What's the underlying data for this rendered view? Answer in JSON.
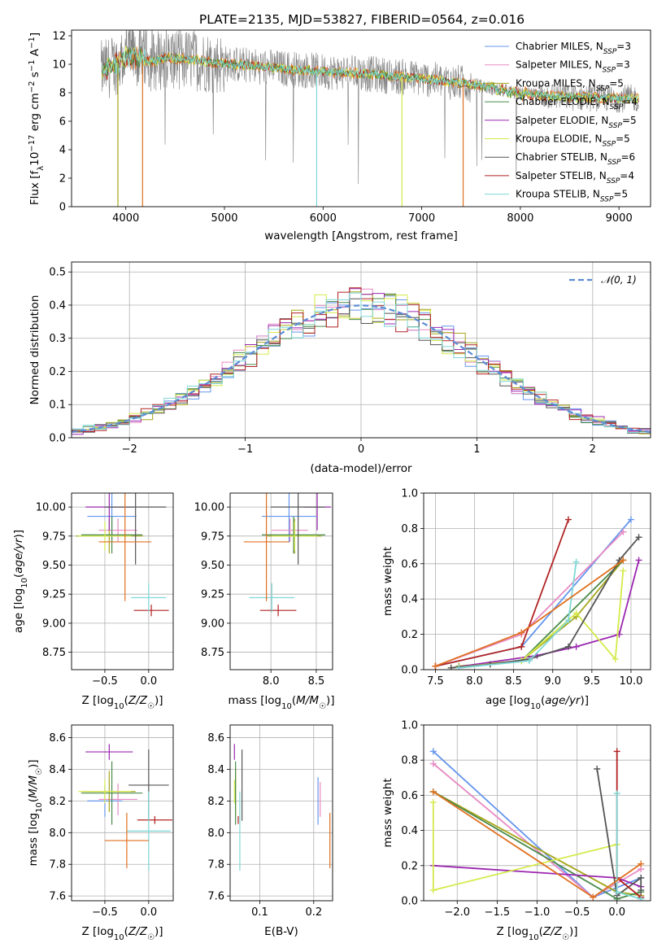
{
  "figure": {
    "title": "PLATE=2135, MJD=53827, FIBERID=0564, z=0.016"
  },
  "colors": [
    "#6495ed",
    "#e78ac3",
    "#a6a61a",
    "#4a8a4a",
    "#9b27b0",
    "#d4ea4a",
    "#555555",
    "#b22222",
    "#7fd7d7",
    "#e07020"
  ],
  "legend_models": [
    {
      "name": "Chabrier MILES, N_SSP=3",
      "base": "Chabrier MILES, N",
      "sub": "SSP",
      "tail": "=3",
      "color": "#6495ed"
    },
    {
      "name": "Salpeter MILES, N_SSP=3",
      "base": "Salpeter MILES, N",
      "sub": "SSP",
      "tail": "=3",
      "color": "#e78ac3"
    },
    {
      "name": "Kroupa MILES, N_SSP=5",
      "base": "Kroupa MILES, N",
      "sub": "SSP",
      "tail": "=5",
      "color": "#a6a61a"
    },
    {
      "name": "Chabrier ELODIE, N_SSP=4",
      "base": "Chabrier ELODIE, N",
      "sub": "SSP",
      "tail": "=4",
      "color": "#4a8a4a"
    },
    {
      "name": "Salpeter ELODIE, N_SSP=5",
      "base": "Salpeter ELODIE, N",
      "sub": "SSP",
      "tail": "=5",
      "color": "#9b27b0"
    },
    {
      "name": "Kroupa ELODIE, N_SSP=5",
      "base": "Kroupa ELODIE, N",
      "sub": "SSP",
      "tail": "=5",
      "color": "#d4ea4a"
    },
    {
      "name": "Chabrier STELIB, N_SSP=6",
      "base": "Chabrier STELIB, N",
      "sub": "SSP",
      "tail": "=6",
      "color": "#555555"
    },
    {
      "name": "Salpeter STELIB, N_SSP=4",
      "base": "Salpeter STELIB, N",
      "sub": "SSP",
      "tail": "=4",
      "color": "#b22222"
    },
    {
      "name": "Kroupa STELIB, N_SSP=5",
      "base": "Kroupa STELIB, N",
      "sub": "SSP",
      "tail": "=5",
      "color": "#7fd7d7"
    }
  ],
  "chart_data": [
    {
      "id": "spectrum",
      "type": "line",
      "xlabel": "wavelength [Angstrom, rest frame]",
      "ylabel": "Flux [f_λ 10^-17 erg cm^-2 s^-1 A^-1]",
      "xlim": [
        3450,
        9320
      ],
      "ylim": [
        0,
        12.4
      ],
      "xticks": [
        4000,
        5000,
        6000,
        7000,
        8000,
        9000
      ],
      "yticks": [
        0,
        2,
        4,
        6,
        8,
        10,
        12
      ],
      "grid": false,
      "legend_position": "top-right",
      "continuum": {
        "x": [
          3750,
          3900,
          4000,
          4100,
          4200,
          4300,
          4400,
          4500,
          4700,
          4900,
          5100,
          5300,
          5600,
          6000,
          6500,
          7000,
          7500,
          7800,
          8000,
          8500,
          9000,
          9200
        ],
        "y": [
          9.5,
          10.0,
          10.4,
          10.5,
          10.3,
          10.2,
          10.5,
          10.4,
          10.3,
          10.1,
          10.0,
          9.9,
          9.7,
          9.5,
          9.3,
          9.0,
          8.6,
          8.2,
          7.9,
          7.7,
          7.6,
          7.6
        ]
      },
      "data_spike_lows": [
        {
          "x": 3920,
          "y": 0
        },
        {
          "x": 4170,
          "y": 0
        },
        {
          "x": 5935,
          "y": 0
        },
        {
          "x": 6800,
          "y": 0
        },
        {
          "x": 7420,
          "y": 0
        }
      ]
    },
    {
      "id": "residual_hist",
      "type": "histogram",
      "xlabel": "(data-model)/error",
      "ylabel": "Normed distribution",
      "xlim": [
        -2.5,
        2.5
      ],
      "ylim": [
        0,
        0.53
      ],
      "xticks": [
        -2,
        -1,
        0,
        1,
        2
      ],
      "yticks": [
        0.0,
        0.1,
        0.2,
        0.3,
        0.4,
        0.5
      ],
      "grid": true,
      "reference_curve": "N(0,1)",
      "reference_legend": "𝒩(0, 1)",
      "legend_position": "top-right",
      "bin_width": 0.1,
      "bin_start": -2.5
    },
    {
      "id": "age_vs_Z",
      "type": "errorbar",
      "xlabel": "Z [log10(Z/Z☉)]",
      "ylabel": "age [log10(age/yr)]",
      "xlim": [
        -0.88,
        0.28
      ],
      "ylim": [
        8.6,
        10.12
      ],
      "xticks": [
        -0.5,
        0.0
      ],
      "yticks": [
        8.75,
        9.0,
        9.25,
        9.5,
        9.75,
        10.0
      ],
      "points": [
        {
          "x": -0.42,
          "y": 9.92,
          "xerr": 0.28,
          "yerr": 0.45,
          "color": "#6495ed"
        },
        {
          "x": -0.35,
          "y": 9.8,
          "xerr": 0.22,
          "yerr": 0.2,
          "color": "#e78ac3"
        },
        {
          "x": -0.45,
          "y": 9.75,
          "xerr": 0.38,
          "yerr": 0.3,
          "color": "#a6a61a"
        },
        {
          "x": -0.42,
          "y": 9.76,
          "xerr": 0.35,
          "yerr": 0.32,
          "color": "#4a8a4a"
        },
        {
          "x": -0.45,
          "y": 10.0,
          "xerr": 0.27,
          "yerr": 0.4,
          "color": "#9b27b0"
        },
        {
          "x": -0.5,
          "y": 9.75,
          "xerr": 0.3,
          "yerr": 0.25,
          "color": "#d4ea4a"
        },
        {
          "x": -0.15,
          "y": 10.0,
          "xerr": 0.35,
          "yerr": 0.99,
          "color": "#555555"
        },
        {
          "x": 0.03,
          "y": 9.11,
          "xerr": 0.2,
          "yerr": 0.1,
          "color": "#b22222"
        },
        {
          "x": 0.0,
          "y": 9.22,
          "xerr": 0.2,
          "yerr": 0.25,
          "color": "#7fd7d7"
        },
        {
          "x": -0.27,
          "y": 9.7,
          "xerr": 0.3,
          "yerr": 1.02,
          "color": "#e07020"
        }
      ]
    },
    {
      "id": "age_vs_mass",
      "type": "errorbar",
      "xlabel": "mass [log10(M/M☉)]",
      "ylabel": "",
      "xlim": [
        7.55,
        8.68
      ],
      "ylim": [
        8.6,
        10.12
      ],
      "xticks": [
        8.0,
        8.5
      ],
      "yticks": [
        8.75,
        9.0,
        9.25,
        9.5,
        9.75,
        10.0
      ],
      "points": [
        {
          "x": 8.2,
          "y": 9.92,
          "xerr": 0.3,
          "yerr": 0.45,
          "color": "#6495ed"
        },
        {
          "x": 8.21,
          "y": 9.8,
          "xerr": 0.2,
          "yerr": 0.2,
          "color": "#e78ac3"
        },
        {
          "x": 8.26,
          "y": 9.75,
          "xerr": 0.3,
          "yerr": 0.3,
          "color": "#a6a61a"
        },
        {
          "x": 8.25,
          "y": 9.76,
          "xerr": 0.35,
          "yerr": 0.32,
          "color": "#4a8a4a"
        },
        {
          "x": 8.51,
          "y": 10.0,
          "xerr": 0.15,
          "yerr": 0.4,
          "color": "#9b27b0"
        },
        {
          "x": 8.26,
          "y": 9.75,
          "xerr": 0.25,
          "yerr": 0.25,
          "color": "#d4ea4a"
        },
        {
          "x": 8.3,
          "y": 10.0,
          "xerr": 0.3,
          "yerr": 0.99,
          "color": "#555555"
        },
        {
          "x": 8.08,
          "y": 9.11,
          "xerr": 0.2,
          "yerr": 0.1,
          "color": "#b22222"
        },
        {
          "x": 8.01,
          "y": 9.22,
          "xerr": 0.25,
          "yerr": 0.25,
          "color": "#7fd7d7"
        },
        {
          "x": 7.95,
          "y": 9.7,
          "xerr": 0.25,
          "yerr": 1.02,
          "color": "#e07020"
        }
      ]
    },
    {
      "id": "mass_weight_vs_age",
      "type": "line",
      "xlabel": "age [log10(age/yr)]",
      "ylabel": "mass weight",
      "xlim": [
        7.35,
        10.25
      ],
      "ylim": [
        0,
        1.0
      ],
      "xticks": [
        7.5,
        8.0,
        8.5,
        9.0,
        9.5,
        10.0
      ],
      "yticks": [
        0.0,
        0.2,
        0.4,
        0.6,
        0.8,
        1.0
      ],
      "grid": true,
      "series": [
        {
          "color": "#6495ed",
          "x": [
            7.5,
            8.6,
            10.0
          ],
          "y": [
            0.02,
            0.13,
            0.85
          ]
        },
        {
          "color": "#e78ac3",
          "x": [
            7.5,
            8.6,
            9.9
          ],
          "y": [
            0.02,
            0.2,
            0.78
          ]
        },
        {
          "color": "#a6a61a",
          "x": [
            7.8,
            8.6,
            9.3,
            9.9
          ],
          "y": [
            0.02,
            0.05,
            0.3,
            0.62
          ]
        },
        {
          "color": "#4a8a4a",
          "x": [
            7.8,
            8.6,
            9.9
          ],
          "y": [
            0.01,
            0.05,
            0.62
          ]
        },
        {
          "color": "#9b27b0",
          "x": [
            7.7,
            8.8,
            9.3,
            9.85,
            10.1
          ],
          "y": [
            0.01,
            0.08,
            0.13,
            0.2,
            0.62
          ]
        },
        {
          "color": "#d4ea4a",
          "x": [
            7.7,
            8.6,
            9.3,
            9.8,
            9.9
          ],
          "y": [
            0.01,
            0.05,
            0.32,
            0.06,
            0.56
          ]
        },
        {
          "color": "#555555",
          "x": [
            7.7,
            8.2,
            8.7,
            9.2,
            9.85,
            10.1
          ],
          "y": [
            0.01,
            0.03,
            0.06,
            0.13,
            0.62,
            0.75
          ]
        },
        {
          "color": "#b22222",
          "x": [
            7.5,
            8.6,
            9.2
          ],
          "y": [
            0.02,
            0.13,
            0.85
          ]
        },
        {
          "color": "#7fd7d7",
          "x": [
            7.8,
            8.7,
            9.2,
            9.3
          ],
          "y": [
            0.01,
            0.05,
            0.28,
            0.61
          ]
        },
        {
          "color": "#e07020",
          "x": [
            7.5,
            8.6,
            9.9
          ],
          "y": [
            0.02,
            0.21,
            0.62
          ]
        }
      ]
    },
    {
      "id": "mass_vs_Z",
      "type": "errorbar",
      "xlabel": "Z [log10(Z/Z☉)]",
      "ylabel": "mass [log10(M/M☉)]",
      "xlim": [
        -0.88,
        0.28
      ],
      "ylim": [
        7.57,
        8.68
      ],
      "xticks": [
        -0.5,
        0.0
      ],
      "yticks": [
        7.6,
        7.8,
        8.0,
        8.2,
        8.4,
        8.6
      ],
      "points": [
        {
          "x": -0.5,
          "y": 8.2,
          "xerr": 0.2,
          "yerr": 0.2,
          "color": "#6495ed"
        },
        {
          "x": -0.35,
          "y": 8.21,
          "xerr": 0.22,
          "yerr": 0.2,
          "color": "#e78ac3"
        },
        {
          "x": -0.45,
          "y": 8.26,
          "xerr": 0.3,
          "yerr": 0.26,
          "color": "#a6a61a"
        },
        {
          "x": -0.42,
          "y": 8.25,
          "xerr": 0.35,
          "yerr": 0.4,
          "color": "#4a8a4a"
        },
        {
          "x": -0.45,
          "y": 8.51,
          "xerr": 0.27,
          "yerr": 0.1,
          "color": "#9b27b0"
        },
        {
          "x": -0.5,
          "y": 8.26,
          "xerr": 0.3,
          "yerr": 0.15,
          "color": "#d4ea4a"
        },
        {
          "x": 0.0,
          "y": 8.3,
          "xerr": 0.23,
          "yerr": 0.45,
          "color": "#555555"
        },
        {
          "x": 0.07,
          "y": 8.08,
          "xerr": 0.2,
          "yerr": 0.05,
          "color": "#b22222"
        },
        {
          "x": 0.0,
          "y": 8.01,
          "xerr": 0.25,
          "yerr": 0.5,
          "color": "#7fd7d7"
        },
        {
          "x": -0.25,
          "y": 7.95,
          "xerr": 0.25,
          "yerr": 0.35,
          "color": "#e07020"
        }
      ]
    },
    {
      "id": "mass_vs_EBV",
      "type": "errorbar",
      "xlabel": "E(B-V)",
      "ylabel": "",
      "xlim": [
        0.045,
        0.235
      ],
      "ylim": [
        7.57,
        8.68
      ],
      "xticks": [
        0.1,
        0.2
      ],
      "yticks": [
        7.6,
        7.8,
        8.0,
        8.2,
        8.4,
        8.6
      ],
      "points": [
        {
          "x": 0.208,
          "y": 8.2,
          "xerr": 0.0,
          "yerr": 0.3,
          "color": "#6495ed"
        },
        {
          "x": 0.212,
          "y": 8.21,
          "xerr": 0.0,
          "yerr": 0.22,
          "color": "#e78ac3"
        },
        {
          "x": 0.055,
          "y": 8.26,
          "xerr": 0.0,
          "yerr": 0.3,
          "color": "#a6a61a"
        },
        {
          "x": 0.055,
          "y": 8.25,
          "xerr": 0.0,
          "yerr": 0.4,
          "color": "#4a8a4a"
        },
        {
          "x": 0.053,
          "y": 8.51,
          "xerr": 0.0,
          "yerr": 0.1,
          "color": "#9b27b0"
        },
        {
          "x": 0.053,
          "y": 8.26,
          "xerr": 0.0,
          "yerr": 0.15,
          "color": "#d4ea4a"
        },
        {
          "x": 0.067,
          "y": 8.3,
          "xerr": 0.0,
          "yerr": 0.45,
          "color": "#555555"
        },
        {
          "x": 0.06,
          "y": 8.08,
          "xerr": 0.0,
          "yerr": 0.05,
          "color": "#b22222"
        },
        {
          "x": 0.063,
          "y": 8.01,
          "xerr": 0.0,
          "yerr": 0.5,
          "color": "#7fd7d7"
        },
        {
          "x": 0.23,
          "y": 7.95,
          "xerr": 0.0,
          "yerr": 0.35,
          "color": "#e07020"
        }
      ]
    },
    {
      "id": "mass_weight_vs_Z",
      "type": "line",
      "xlabel": "Z [log10(Z/Z☉)]",
      "ylabel": "mass weight",
      "xlim": [
        -2.42,
        0.42
      ],
      "ylim": [
        0,
        1.0
      ],
      "xticks": [
        -2.0,
        -1.5,
        -1.0,
        -0.5,
        0.0
      ],
      "yticks": [
        0.0,
        0.2,
        0.4,
        0.6,
        0.8,
        1.0
      ],
      "grid": true,
      "series": [
        {
          "color": "#6495ed",
          "x": [
            -2.3,
            -0.3,
            0.3
          ],
          "y": [
            0.85,
            0.02,
            0.13
          ]
        },
        {
          "color": "#e78ac3",
          "x": [
            -2.3,
            -0.3,
            0.3
          ],
          "y": [
            0.78,
            0.02,
            0.18
          ]
        },
        {
          "color": "#a6a61a",
          "x": [
            -2.3,
            0.0,
            0.3
          ],
          "y": [
            0.62,
            0.05,
            0.03
          ]
        },
        {
          "color": "#4a8a4a",
          "x": [
            -2.3,
            0.0,
            0.3
          ],
          "y": [
            0.62,
            0.01,
            0.05
          ]
        },
        {
          "color": "#9b27b0",
          "x": [
            -2.3,
            0.0,
            0.3
          ],
          "y": [
            0.2,
            0.13,
            0.08
          ]
        },
        {
          "color": "#d4ea4a",
          "x": [
            -2.3,
            -2.3,
            0.0,
            0.0
          ],
          "y": [
            0.56,
            0.06,
            0.32,
            0.05
          ]
        },
        {
          "color": "#555555",
          "x": [
            -0.25,
            0.0,
            0.3,
            0.3
          ],
          "y": [
            0.75,
            0.03,
            0.13,
            0.06
          ]
        },
        {
          "color": "#b22222",
          "x": [
            0.0,
            0.0,
            0.3
          ],
          "y": [
            0.85,
            0.13,
            0.02
          ]
        },
        {
          "color": "#7fd7d7",
          "x": [
            0.0,
            0.0,
            0.3
          ],
          "y": [
            0.61,
            0.05,
            0.01
          ]
        },
        {
          "color": "#e07020",
          "x": [
            -2.3,
            -0.3,
            0.3
          ],
          "y": [
            0.62,
            0.02,
            0.21
          ]
        }
      ]
    }
  ]
}
